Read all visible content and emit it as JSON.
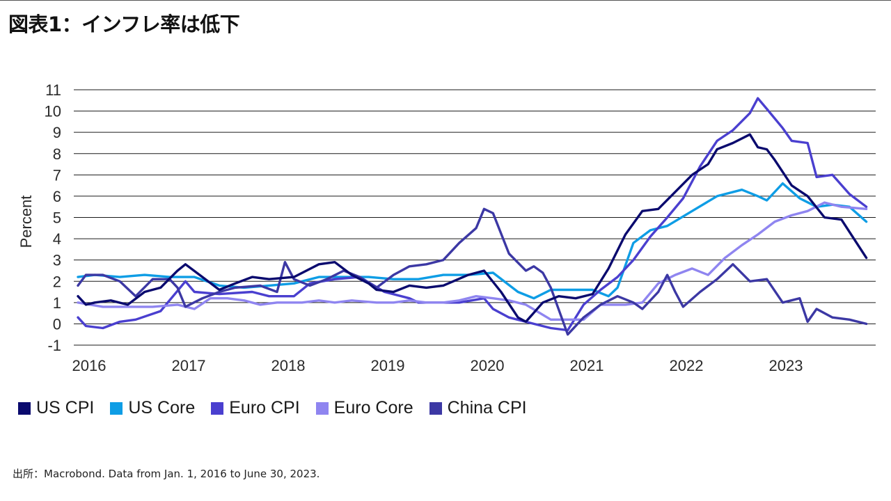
{
  "page": {
    "title": "図表1：インフレ率は低下",
    "source": "出所：Macrobond. Data from Jan. 1, 2016 to June 30, 2023."
  },
  "chart_data": {
    "type": "line",
    "title": "図表1：インフレ率は低下",
    "xlabel": "",
    "ylabel": "Percent",
    "ylim": [
      -1,
      11
    ],
    "yticks": [
      -1,
      0,
      1,
      2,
      3,
      4,
      5,
      6,
      7,
      8,
      9,
      10,
      11
    ],
    "xlim": [
      2016.0,
      2024.0
    ],
    "x_tick_labels": [
      "2016",
      "2017",
      "2018",
      "2019",
      "2020",
      "2021",
      "2022",
      "2023"
    ],
    "x_tick_values": [
      2016.0,
      2017.0,
      2018.0,
      2019.0,
      2020.0,
      2021.0,
      2022.0,
      2023.0
    ],
    "grid": "horizontal",
    "legend_position": "bottom",
    "series": [
      {
        "name": "US Core",
        "color": "#0E9DE5",
        "points": [
          [
            2016.0,
            2.2
          ],
          [
            2016.17,
            2.3
          ],
          [
            2016.42,
            2.2
          ],
          [
            2016.67,
            2.3
          ],
          [
            2016.92,
            2.2
          ],
          [
            2017.17,
            2.2
          ],
          [
            2017.42,
            1.8
          ],
          [
            2017.67,
            1.7
          ],
          [
            2017.92,
            1.8
          ],
          [
            2018.17,
            1.9
          ],
          [
            2018.42,
            2.2
          ],
          [
            2018.67,
            2.2
          ],
          [
            2018.92,
            2.2
          ],
          [
            2019.17,
            2.1
          ],
          [
            2019.42,
            2.1
          ],
          [
            2019.67,
            2.3
          ],
          [
            2019.92,
            2.3
          ],
          [
            2020.17,
            2.4
          ],
          [
            2020.42,
            1.5
          ],
          [
            2020.58,
            1.2
          ],
          [
            2020.75,
            1.6
          ],
          [
            2020.92,
            1.6
          ],
          [
            2021.17,
            1.6
          ],
          [
            2021.33,
            1.3
          ],
          [
            2021.42,
            1.7
          ],
          [
            2021.58,
            3.8
          ],
          [
            2021.75,
            4.4
          ],
          [
            2021.92,
            4.6
          ],
          [
            2022.17,
            5.3
          ],
          [
            2022.42,
            6.0
          ],
          [
            2022.67,
            6.3
          ],
          [
            2022.83,
            6.0
          ],
          [
            2022.92,
            5.8
          ],
          [
            2023.08,
            6.6
          ],
          [
            2023.25,
            5.9
          ],
          [
            2023.42,
            5.5
          ],
          [
            2023.58,
            5.6
          ],
          [
            2023.75,
            5.5
          ],
          [
            2023.92,
            4.8
          ]
        ]
      },
      {
        "name": "Euro CPI",
        "color": "#4A3FCF",
        "points": [
          [
            2016.0,
            0.3
          ],
          [
            2016.08,
            -0.1
          ],
          [
            2016.25,
            -0.2
          ],
          [
            2016.42,
            0.1
          ],
          [
            2016.58,
            0.2
          ],
          [
            2016.83,
            0.6
          ],
          [
            2017.08,
            2.0
          ],
          [
            2017.17,
            1.5
          ],
          [
            2017.42,
            1.4
          ],
          [
            2017.75,
            1.5
          ],
          [
            2017.92,
            1.3
          ],
          [
            2018.17,
            1.3
          ],
          [
            2018.33,
            1.9
          ],
          [
            2018.58,
            2.1
          ],
          [
            2018.83,
            2.2
          ],
          [
            2019.08,
            1.5
          ],
          [
            2019.33,
            1.2
          ],
          [
            2019.42,
            1.0
          ],
          [
            2019.58,
            1.0
          ],
          [
            2019.83,
            1.0
          ],
          [
            2020.08,
            1.2
          ],
          [
            2020.17,
            0.7
          ],
          [
            2020.33,
            0.3
          ],
          [
            2020.58,
            0.0
          ],
          [
            2020.75,
            -0.2
          ],
          [
            2020.92,
            -0.3
          ],
          [
            2021.08,
            0.9
          ],
          [
            2021.25,
            1.6
          ],
          [
            2021.42,
            2.2
          ],
          [
            2021.58,
            3.0
          ],
          [
            2021.75,
            4.1
          ],
          [
            2021.92,
            5.0
          ],
          [
            2022.08,
            5.9
          ],
          [
            2022.25,
            7.4
          ],
          [
            2022.42,
            8.6
          ],
          [
            2022.58,
            9.1
          ],
          [
            2022.75,
            9.9
          ],
          [
            2022.83,
            10.6
          ],
          [
            2022.92,
            10.1
          ],
          [
            2023.08,
            9.2
          ],
          [
            2023.17,
            8.6
          ],
          [
            2023.33,
            8.5
          ],
          [
            2023.42,
            6.9
          ],
          [
            2023.58,
            7.0
          ],
          [
            2023.75,
            6.1
          ],
          [
            2023.92,
            5.5
          ]
        ]
      },
      {
        "name": "Euro Core",
        "color": "#8F85F0",
        "points": [
          [
            2016.0,
            1.0
          ],
          [
            2016.25,
            0.8
          ],
          [
            2016.5,
            0.8
          ],
          [
            2016.75,
            0.8
          ],
          [
            2017.0,
            0.9
          ],
          [
            2017.17,
            0.7
          ],
          [
            2017.33,
            1.2
          ],
          [
            2017.5,
            1.2
          ],
          [
            2017.67,
            1.1
          ],
          [
            2017.83,
            0.9
          ],
          [
            2018.0,
            1.0
          ],
          [
            2018.25,
            1.0
          ],
          [
            2018.42,
            1.1
          ],
          [
            2018.58,
            1.0
          ],
          [
            2018.75,
            1.1
          ],
          [
            2019.0,
            1.0
          ],
          [
            2019.17,
            1.0
          ],
          [
            2019.33,
            1.1
          ],
          [
            2019.5,
            1.0
          ],
          [
            2019.67,
            1.0
          ],
          [
            2019.83,
            1.1
          ],
          [
            2020.0,
            1.3
          ],
          [
            2020.17,
            1.2
          ],
          [
            2020.33,
            1.1
          ],
          [
            2020.5,
            0.9
          ],
          [
            2020.75,
            0.2
          ],
          [
            2020.92,
            0.2
          ],
          [
            2021.08,
            0.2
          ],
          [
            2021.25,
            0.9
          ],
          [
            2021.5,
            0.9
          ],
          [
            2021.67,
            1.0
          ],
          [
            2021.83,
            1.9
          ],
          [
            2022.0,
            2.3
          ],
          [
            2022.17,
            2.6
          ],
          [
            2022.33,
            2.3
          ],
          [
            2022.5,
            3.1
          ],
          [
            2022.67,
            3.7
          ],
          [
            2022.83,
            4.2
          ],
          [
            2023.0,
            4.8
          ],
          [
            2023.17,
            5.1
          ],
          [
            2023.33,
            5.3
          ],
          [
            2023.5,
            5.7
          ],
          [
            2023.67,
            5.5
          ],
          [
            2023.92,
            5.4
          ]
        ]
      },
      {
        "name": "China CPI",
        "color": "#3C38A4",
        "points": [
          [
            2016.0,
            1.8
          ],
          [
            2016.08,
            2.3
          ],
          [
            2016.25,
            2.3
          ],
          [
            2016.42,
            2.0
          ],
          [
            2016.58,
            1.3
          ],
          [
            2016.75,
            2.1
          ],
          [
            2016.92,
            2.1
          ],
          [
            2017.0,
            1.7
          ],
          [
            2017.08,
            0.8
          ],
          [
            2017.25,
            1.2
          ],
          [
            2017.42,
            1.5
          ],
          [
            2017.58,
            1.7
          ],
          [
            2017.83,
            1.8
          ],
          [
            2018.0,
            1.5
          ],
          [
            2018.08,
            2.9
          ],
          [
            2018.17,
            2.1
          ],
          [
            2018.33,
            1.8
          ],
          [
            2018.5,
            2.1
          ],
          [
            2018.67,
            2.5
          ],
          [
            2018.83,
            2.2
          ],
          [
            2019.0,
            1.7
          ],
          [
            2019.17,
            2.3
          ],
          [
            2019.33,
            2.7
          ],
          [
            2019.5,
            2.8
          ],
          [
            2019.67,
            3.0
          ],
          [
            2019.83,
            3.8
          ],
          [
            2020.0,
            4.5
          ],
          [
            2020.08,
            5.4
          ],
          [
            2020.17,
            5.2
          ],
          [
            2020.33,
            3.3
          ],
          [
            2020.5,
            2.5
          ],
          [
            2020.58,
            2.7
          ],
          [
            2020.67,
            2.4
          ],
          [
            2020.75,
            1.7
          ],
          [
            2020.92,
            -0.5
          ],
          [
            2021.08,
            0.3
          ],
          [
            2021.25,
            0.9
          ],
          [
            2021.42,
            1.3
          ],
          [
            2021.58,
            1.0
          ],
          [
            2021.67,
            0.7
          ],
          [
            2021.83,
            1.5
          ],
          [
            2021.92,
            2.3
          ],
          [
            2022.0,
            1.5
          ],
          [
            2022.08,
            0.8
          ],
          [
            2022.25,
            1.5
          ],
          [
            2022.42,
            2.1
          ],
          [
            2022.58,
            2.8
          ],
          [
            2022.75,
            2.0
          ],
          [
            2022.92,
            2.1
          ],
          [
            2023.08,
            1.0
          ],
          [
            2023.25,
            1.2
          ],
          [
            2023.33,
            0.1
          ],
          [
            2023.42,
            0.7
          ],
          [
            2023.58,
            0.3
          ],
          [
            2023.75,
            0.2
          ],
          [
            2023.92,
            0.0
          ]
        ]
      },
      {
        "name": "US CPI",
        "color": "#0A0A6E",
        "points": [
          [
            2016.0,
            1.3
          ],
          [
            2016.08,
            0.9
          ],
          [
            2016.17,
            1.0
          ],
          [
            2016.33,
            1.1
          ],
          [
            2016.5,
            0.9
          ],
          [
            2016.67,
            1.5
          ],
          [
            2016.83,
            1.7
          ],
          [
            2017.0,
            2.5
          ],
          [
            2017.08,
            2.8
          ],
          [
            2017.25,
            2.2
          ],
          [
            2017.42,
            1.6
          ],
          [
            2017.58,
            1.9
          ],
          [
            2017.75,
            2.2
          ],
          [
            2017.92,
            2.1
          ],
          [
            2018.17,
            2.2
          ],
          [
            2018.42,
            2.8
          ],
          [
            2018.58,
            2.9
          ],
          [
            2018.75,
            2.3
          ],
          [
            2018.92,
            1.9
          ],
          [
            2019.0,
            1.6
          ],
          [
            2019.17,
            1.5
          ],
          [
            2019.33,
            1.8
          ],
          [
            2019.5,
            1.7
          ],
          [
            2019.67,
            1.8
          ],
          [
            2019.92,
            2.3
          ],
          [
            2020.08,
            2.5
          ],
          [
            2020.25,
            1.5
          ],
          [
            2020.42,
            0.3
          ],
          [
            2020.5,
            0.1
          ],
          [
            2020.67,
            1.0
          ],
          [
            2020.83,
            1.3
          ],
          [
            2021.0,
            1.2
          ],
          [
            2021.17,
            1.4
          ],
          [
            2021.33,
            2.6
          ],
          [
            2021.5,
            4.2
          ],
          [
            2021.67,
            5.3
          ],
          [
            2021.83,
            5.4
          ],
          [
            2022.0,
            6.2
          ],
          [
            2022.17,
            7.0
          ],
          [
            2022.33,
            7.5
          ],
          [
            2022.42,
            8.2
          ],
          [
            2022.58,
            8.5
          ],
          [
            2022.75,
            8.9
          ],
          [
            2022.83,
            8.3
          ],
          [
            2022.92,
            8.2
          ],
          [
            2023.0,
            7.7
          ],
          [
            2023.17,
            6.5
          ],
          [
            2023.33,
            6.0
          ],
          [
            2023.5,
            5.0
          ],
          [
            2023.67,
            4.9
          ],
          [
            2023.92,
            3.1
          ]
        ]
      }
    ]
  },
  "legend": [
    {
      "label": "US CPI",
      "color": "#0A0A6E"
    },
    {
      "label": "US Core",
      "color": "#0E9DE5"
    },
    {
      "label": "Euro CPI",
      "color": "#4A3FCF"
    },
    {
      "label": "Euro Core",
      "color": "#8F85F0"
    },
    {
      "label": "China CPI",
      "color": "#3C38A4"
    }
  ]
}
